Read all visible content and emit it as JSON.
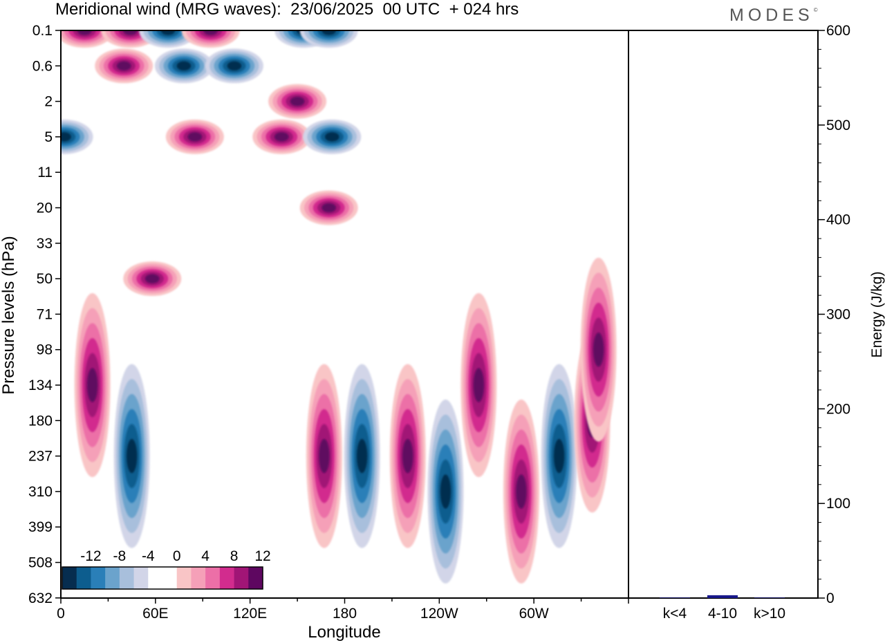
{
  "header": {
    "title": "Meridional wind (MRG waves):  23/06/2025  00 UTC  + 024 hrs",
    "brand": "MODES",
    "brand_mark": "©"
  },
  "chart_data": [
    {
      "type": "heatmap",
      "title": "Meridional wind (MRG waves):  23/06/2025  00 UTC  + 024 hrs",
      "xlabel": "Longitude",
      "ylabel": "Pressure levels (hPa)",
      "x_ticks": [
        "0",
        "60E",
        "120E",
        "180",
        "120W",
        "60W"
      ],
      "y_ticks": [
        "0.1",
        "0.6",
        "2",
        "5",
        "11",
        "20",
        "33",
        "50",
        "71",
        "98",
        "134",
        "180",
        "237",
        "310",
        "399",
        "508",
        "632"
      ],
      "colorbar": {
        "labels": [
          "-12",
          "-8",
          "-4",
          "0",
          "4",
          "8",
          "12"
        ],
        "colors": [
          "#062d4f",
          "#0d5d8e",
          "#2a7fb8",
          "#6ba3cc",
          "#a8bfdc",
          "#d2d5e8",
          "#ffffff",
          "#ffffff",
          "#f9c5c6",
          "#f5a0b8",
          "#ec6fa7",
          "#d22c8e",
          "#a11576",
          "#5e0760"
        ]
      },
      "features": [
        {
          "lon": 15,
          "p": "0.1",
          "sign": "positive"
        },
        {
          "lon": 44,
          "p": "0.1",
          "sign": "positive"
        },
        {
          "lon": 40,
          "p": "0.6",
          "sign": "positive"
        },
        {
          "lon": 2,
          "p": "5",
          "sign": "negative"
        },
        {
          "lon": 68,
          "p": "0.1",
          "sign": "negative"
        },
        {
          "lon": 78,
          "p": "0.6",
          "sign": "negative"
        },
        {
          "lon": 95,
          "p": "0.1",
          "sign": "positive"
        },
        {
          "lon": 85,
          "p": "5",
          "sign": "positive"
        },
        {
          "lon": 110,
          "p": "0.6",
          "sign": "negative"
        },
        {
          "lon": 140,
          "p": "5",
          "sign": "positive"
        },
        {
          "lon": 150,
          "p": "2",
          "sign": "positive"
        },
        {
          "lon": 154,
          "p": "0.1",
          "sign": "negative"
        },
        {
          "lon": 170,
          "p": "0.1",
          "sign": "negative"
        },
        {
          "lon": 172,
          "p": "5",
          "sign": "negative"
        },
        {
          "lon": 170,
          "p": "20",
          "sign": "positive"
        },
        {
          "lon": 58,
          "p": "50",
          "sign": "positive"
        },
        {
          "lon": 20,
          "p": "134",
          "sign": "positive"
        },
        {
          "lon": 45,
          "p": "237",
          "sign": "negative"
        },
        {
          "lon": 167,
          "p": "237",
          "sign": "positive"
        },
        {
          "lon": 191,
          "p": "237",
          "sign": "negative"
        },
        {
          "lon": 220,
          "p": "237",
          "sign": "positive"
        },
        {
          "lon": 244,
          "p": "310",
          "sign": "negative"
        },
        {
          "lon": 265,
          "p": "134",
          "sign": "positive"
        },
        {
          "lon": 292,
          "p": "310",
          "sign": "positive"
        },
        {
          "lon": 316,
          "p": "237",
          "sign": "negative"
        },
        {
          "lon": 337,
          "p": "180",
          "sign": "positive"
        },
        {
          "lon": 341,
          "p": "98",
          "sign": "positive"
        }
      ]
    },
    {
      "type": "bar",
      "categories": [
        "k<4",
        "4-10",
        "k>10"
      ],
      "values": [
        0.5,
        3,
        0.5
      ],
      "ylabel": "Energy (J/kg)",
      "ylim": [
        0,
        600
      ],
      "y_ticks": [
        "0",
        "100",
        "200",
        "300",
        "400",
        "500",
        "600"
      ],
      "bar_color": "#1a1a8c"
    }
  ]
}
